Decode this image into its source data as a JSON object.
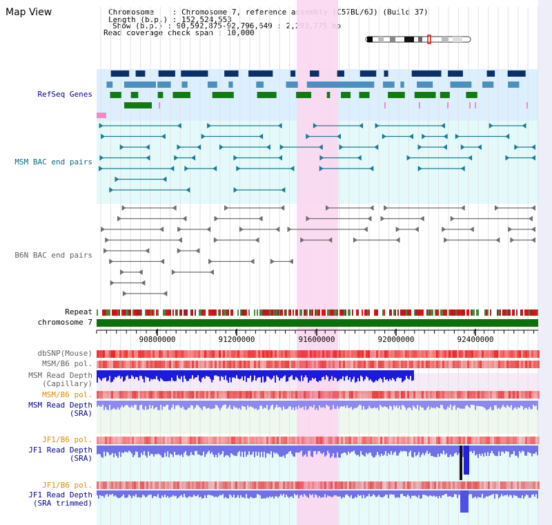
{
  "header": {
    "title": "Map View",
    "chromosome_key": "Chromosome",
    "chromosome_val": "Chromosome 7, reference assembly (C57BL/6J) (Build 37)",
    "length_key": "Length (b.p.)",
    "length_val": "152,524,553",
    "show_key": "Show (b.p.)",
    "show_val": "90,592,875-92,796,649 : 2,203,775 bp",
    "coverage_key": "Read coverage check span",
    "coverage_val": "10,000",
    "sep": ":"
  },
  "tracks": {
    "refseq": "RefSeq Genes",
    "msm_bac": "MSM BAC end pairs",
    "b6n_bac": "B6N BAC end pairs",
    "repeat": "Repeat",
    "chromosome": "chromosome 7",
    "dbsnp": "dbSNP(Mouse)",
    "msm_pol1": "MSM/B6 pol.",
    "msm_depth_cap_1": "MSM Read Depth",
    "msm_depth_cap_2": "(Capillary)",
    "msm_pol2": "MSM/B6 pol.",
    "msm_depth_sra_1": "MSM Read Depth",
    "msm_depth_sra_2": "(SRA)",
    "jf1_pol1": "JF1/B6 pol.",
    "jf1_depth_1": "JF1 Read Depth",
    "jf1_depth_2": "(SRA)",
    "jf1_pol2": "JF1/B6 pol.",
    "jf1_trim_1": "JF1 Read Depth",
    "jf1_trim_2": "(SRA trimmed)"
  },
  "axis": {
    "ticks": [
      "90800000",
      "91200000",
      "91600000",
      "92000000",
      "92400000"
    ]
  },
  "colors": {
    "refseq_bg": "#dcefff",
    "msm_bg": "#e4fafa",
    "highlight": "#fbd7ef",
    "label_blue": "#00008b",
    "label_teal": "#006b80",
    "label_gray": "#606060",
    "label_orange": "#e08800",
    "gene_dark": "#0b2f67",
    "gene_mid": "#4a8fbd",
    "gene_green": "#117a11",
    "bac_teal": "#1b7b94",
    "bac_gray": "#6e6e6e"
  }
}
